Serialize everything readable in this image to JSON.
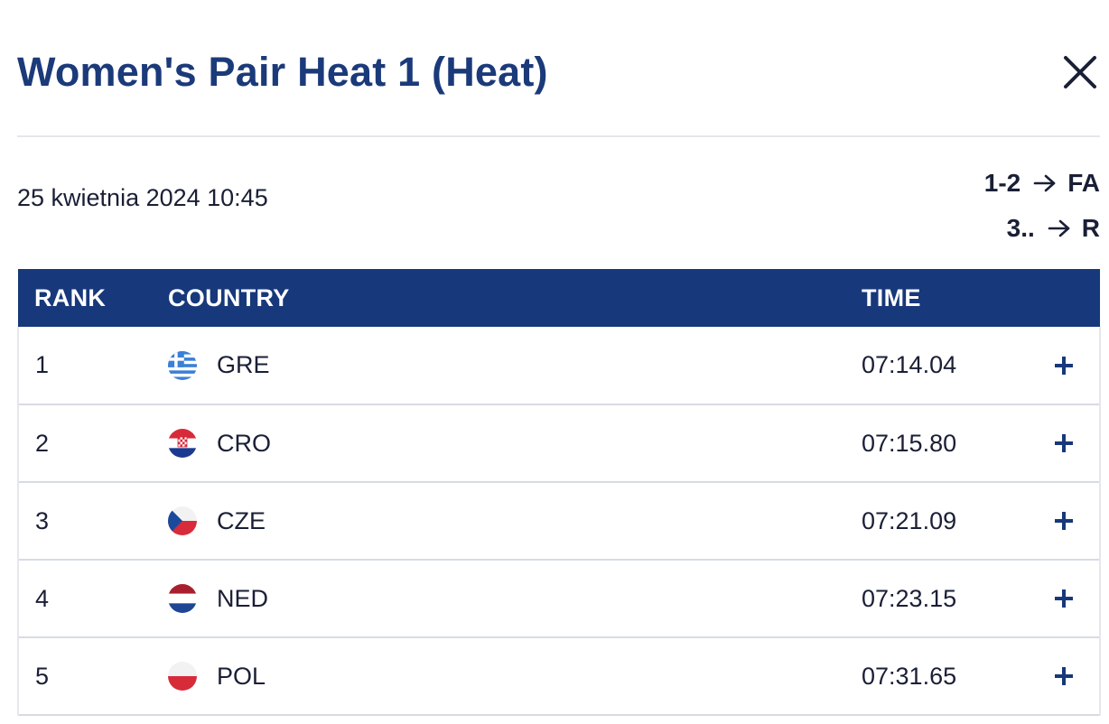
{
  "modal": {
    "title": "Women's Pair Heat 1 (Heat)",
    "close_icon": "close-icon"
  },
  "meta": {
    "date": "25 kwietnia 2024 10:45",
    "progression": [
      {
        "range": "1-2",
        "target": "FA"
      },
      {
        "range": "3..",
        "target": "R"
      }
    ]
  },
  "table": {
    "headers": {
      "rank": "RANK",
      "country": "COUNTRY",
      "time": "TIME"
    },
    "rows": [
      {
        "rank": "1",
        "country": "GRE",
        "flag": "greece-flag-icon",
        "time": "07:14.04"
      },
      {
        "rank": "2",
        "country": "CRO",
        "flag": "croatia-flag-icon",
        "time": "07:15.80"
      },
      {
        "rank": "3",
        "country": "CZE",
        "flag": "czechia-flag-icon",
        "time": "07:21.09"
      },
      {
        "rank": "4",
        "country": "NED",
        "flag": "netherlands-flag-icon",
        "time": "07:23.15"
      },
      {
        "rank": "5",
        "country": "POL",
        "flag": "poland-flag-icon",
        "time": "07:31.65"
      }
    ]
  },
  "colors": {
    "primary": "#17387a",
    "title": "#1b3a7a",
    "text": "#1a1f36",
    "divider": "#d7dbe2"
  }
}
